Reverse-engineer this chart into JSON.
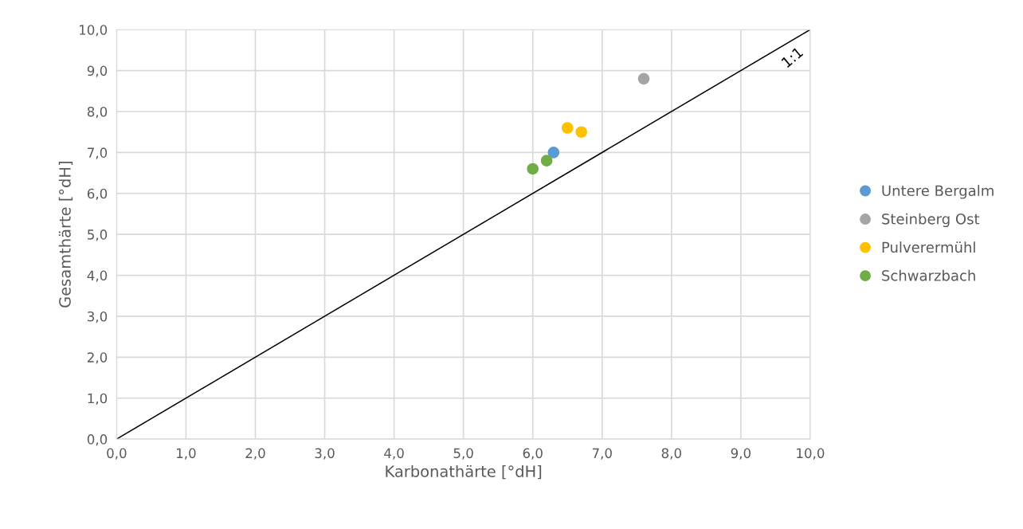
{
  "chart_data": {
    "type": "scatter",
    "xlabel": "Karbonathärte [°dH]",
    "ylabel": "Gesamthärte [°dH]",
    "series": [
      {
        "name": "Untere Bergalm",
        "color": "#5b9bd5",
        "x": [
          6.3
        ],
        "values": [
          7.0
        ]
      },
      {
        "name": "Steinberg Ost",
        "color": "#a5a5a5",
        "x": [
          7.6
        ],
        "values": [
          8.8
        ]
      },
      {
        "name": "Pulverermühl",
        "color": "#ffc000",
        "x": [
          6.5,
          6.7
        ],
        "values": [
          7.6,
          7.5
        ]
      },
      {
        "name": "Schwarzbach",
        "color": "#70ad47",
        "x": [
          6.0,
          6.2
        ],
        "values": [
          6.6,
          6.8
        ]
      },
      {
        "type": "line",
        "color": "#000000",
        "marker": "none",
        "x": [
          0,
          10
        ],
        "values": [
          0,
          10
        ]
      }
    ],
    "annotations": [
      "1:1"
    ],
    "xlim": [
      0,
      10
    ],
    "ylim": [
      0,
      10
    ],
    "xticks": [
      {
        "value": 0,
        "label": "0,0"
      },
      {
        "value": 1,
        "label": "1,0"
      },
      {
        "value": 2,
        "label": "2,0"
      },
      {
        "value": 3,
        "label": "3,0"
      },
      {
        "value": 4,
        "label": "4,0"
      },
      {
        "value": 5,
        "label": "5,0"
      },
      {
        "value": 6,
        "label": "6,0"
      },
      {
        "value": 7,
        "label": "7,0"
      },
      {
        "value": 8,
        "label": "8,0"
      },
      {
        "value": 9,
        "label": "9,0"
      },
      {
        "value": 10,
        "label": "10,0"
      }
    ],
    "yticks": [
      {
        "value": 0,
        "label": "0,0"
      },
      {
        "value": 1,
        "label": "1,0"
      },
      {
        "value": 2,
        "label": "2,0"
      },
      {
        "value": 3,
        "label": "3,0"
      },
      {
        "value": 4,
        "label": "4,0"
      },
      {
        "value": 5,
        "label": "5,0"
      },
      {
        "value": 6,
        "label": "6,0"
      },
      {
        "value": 7,
        "label": "7,0"
      },
      {
        "value": 8,
        "label": "8,0"
      },
      {
        "value": 9,
        "label": "9,0"
      },
      {
        "value": 10,
        "label": "10,0"
      }
    ],
    "grid": true,
    "legend": "right",
    "marker": "circle"
  }
}
